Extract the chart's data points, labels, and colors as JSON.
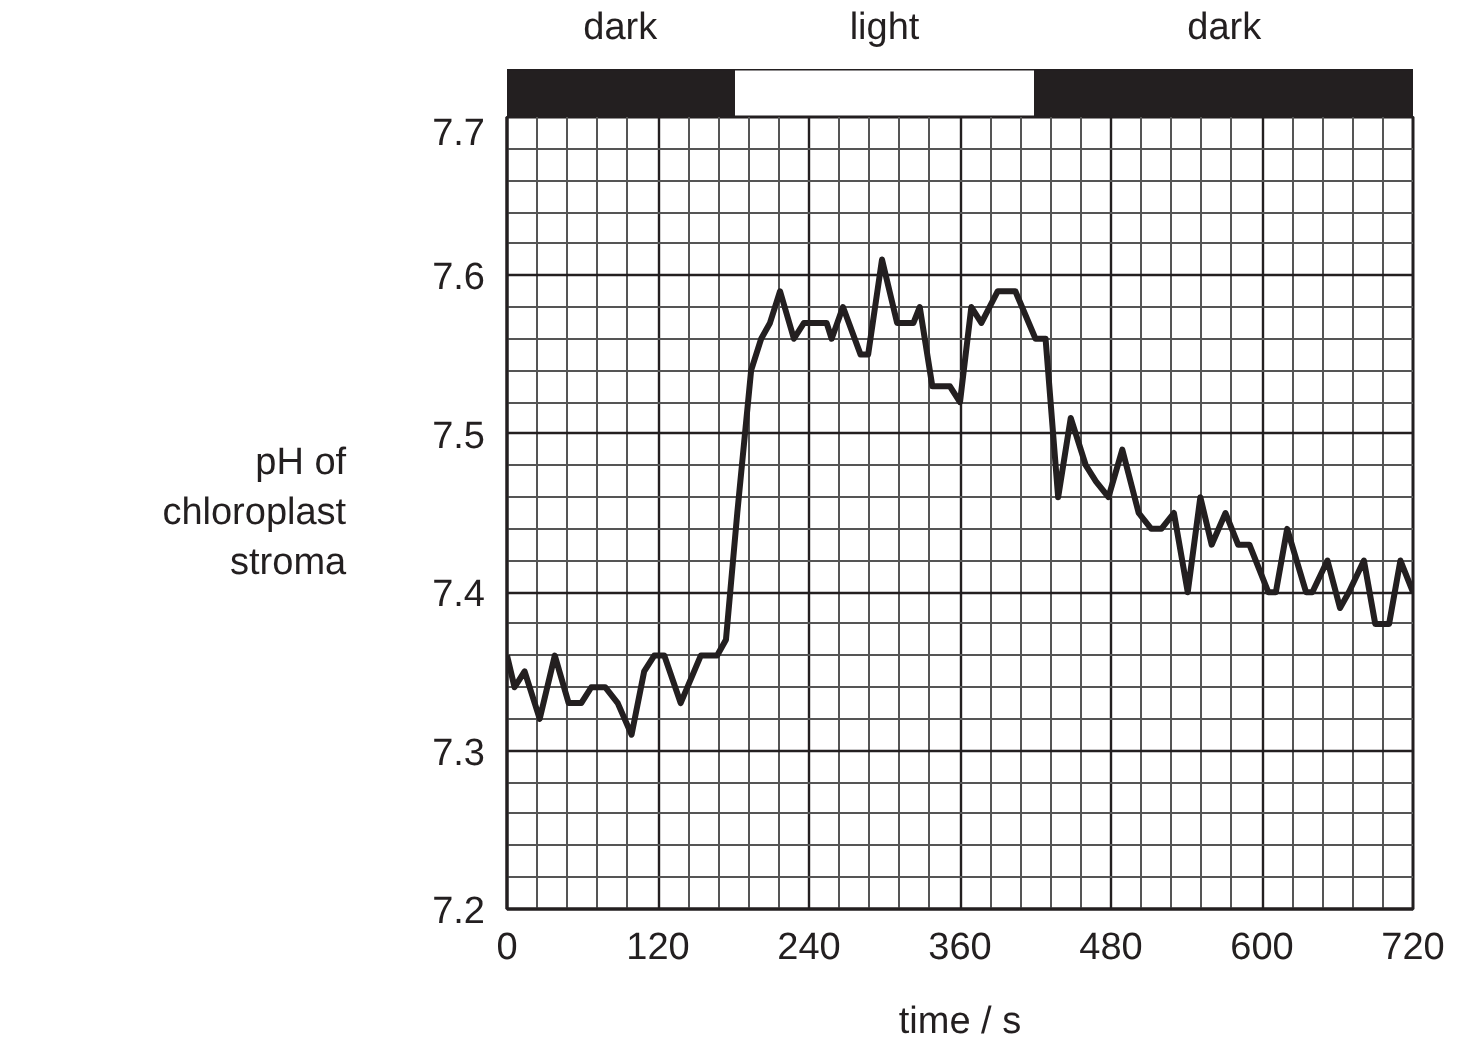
{
  "chart_data": [
    {
      "type": "bar",
      "orientation": "horizontal",
      "stacked": true,
      "categories": [
        null
      ],
      "series": [
        {
          "name": "dark",
          "color": "#231f20",
          "values": [
            180
          ]
        },
        {
          "name": "light",
          "color": "#ffffff",
          "values": [
            240
          ]
        },
        {
          "name": "dark",
          "color": "#231f20",
          "values": [
            300
          ]
        }
      ],
      "xlim": [
        0,
        720
      ],
      "tick_labels": false
    },
    {
      "type": "line",
      "xlabel": "time / s",
      "ylabel": "pH of\nchloroplast\nstroma",
      "x": [
        0,
        6,
        14,
        26,
        38,
        49,
        59,
        67,
        78,
        88,
        99,
        109,
        117,
        125,
        138,
        154,
        167,
        174,
        183,
        194,
        202,
        209,
        217,
        228,
        236,
        254,
        258,
        267,
        281,
        287,
        298,
        310,
        323,
        328,
        338,
        352,
        360,
        369,
        377,
        390,
        404,
        420,
        428,
        438,
        448,
        460,
        468,
        478,
        489,
        502,
        512,
        520,
        530,
        541,
        551,
        560,
        571,
        581,
        590,
        605,
        611,
        620,
        635,
        640,
        652,
        662,
        669,
        681,
        690,
        701,
        710,
        720
      ],
      "series": [
        {
          "color": "#231f20",
          "values": [
            7.36,
            7.34,
            7.35,
            7.32,
            7.36,
            7.33,
            7.33,
            7.34,
            7.34,
            7.33,
            7.31,
            7.35,
            7.36,
            7.36,
            7.33,
            7.36,
            7.36,
            7.37,
            7.45,
            7.54,
            7.56,
            7.57,
            7.59,
            7.56,
            7.57,
            7.57,
            7.56,
            7.58,
            7.55,
            7.55,
            7.61,
            7.57,
            7.57,
            7.58,
            7.53,
            7.53,
            7.52,
            7.58,
            7.57,
            7.59,
            7.59,
            7.56,
            7.56,
            7.46,
            7.51,
            7.48,
            7.47,
            7.46,
            7.49,
            7.45,
            7.44,
            7.44,
            7.45,
            7.4,
            7.46,
            7.43,
            7.45,
            7.43,
            7.43,
            7.4,
            7.4,
            7.44,
            7.4,
            7.4,
            7.42,
            7.39,
            7.4,
            7.42,
            7.38,
            7.38,
            7.42,
            7.4
          ]
        }
      ],
      "xlim": [
        0,
        720
      ],
      "xticks": [
        0,
        120,
        240,
        360,
        480,
        600,
        720
      ],
      "ylim": [
        7.2,
        7.7
      ],
      "yticks": [
        7.2,
        7.3,
        7.4,
        7.5,
        7.6,
        7.7
      ],
      "grid": true,
      "marker": "none",
      "line_style": "solid"
    }
  ]
}
